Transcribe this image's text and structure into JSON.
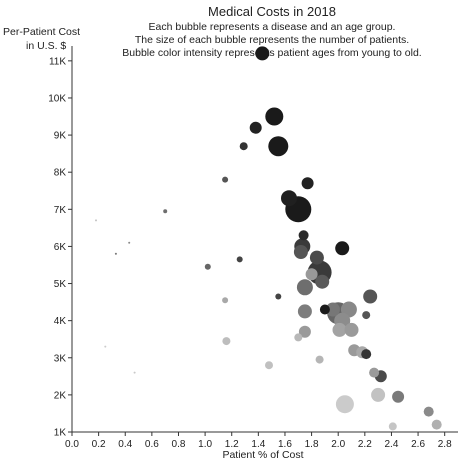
{
  "chart_data": {
    "type": "scatter",
    "title": "Medical Costs in 2018",
    "subtitle": [
      "Each bubble represents a disease and an age group.",
      "The size of each bubble represents the number of patients.",
      "Bubble color intensity represents patient ages from young to old."
    ],
    "xlabel": "Patient % of Cost",
    "ylabel": [
      "Per-Patient Cost",
      "in U.S. $"
    ],
    "xlim": [
      0.0,
      2.9
    ],
    "ylim": [
      1000,
      11400
    ],
    "xticks": [
      "0.0",
      "0.2",
      "0.4",
      "0.6",
      "0.8",
      "1.0",
      "1.2",
      "1.4",
      "1.6",
      "1.8",
      "2.0",
      "2.2",
      "2.4",
      "2.6",
      "2.8"
    ],
    "yticks": [
      "1K",
      "2K",
      "3K",
      "4K",
      "5K",
      "6K",
      "7K",
      "8K",
      "9K",
      "10K",
      "11K"
    ],
    "grid": false,
    "points": [
      {
        "x": 1.43,
        "y": 11200,
        "size": 7,
        "color": "#1a1a1a"
      },
      {
        "x": 1.38,
        "y": 9200,
        "size": 6,
        "color": "#222222"
      },
      {
        "x": 1.52,
        "y": 9500,
        "size": 9,
        "color": "#1a1a1a"
      },
      {
        "x": 1.29,
        "y": 8700,
        "size": 4,
        "color": "#333333"
      },
      {
        "x": 1.55,
        "y": 8700,
        "size": 10,
        "color": "#1a1a1a"
      },
      {
        "x": 1.15,
        "y": 7800,
        "size": 3,
        "color": "#555555"
      },
      {
        "x": 1.77,
        "y": 7700,
        "size": 6,
        "color": "#222222"
      },
      {
        "x": 0.7,
        "y": 6950,
        "size": 2,
        "color": "#6e6e6e"
      },
      {
        "x": 0.18,
        "y": 6700,
        "size": 1,
        "color": "#c2c2c2"
      },
      {
        "x": 1.63,
        "y": 7300,
        "size": 8,
        "color": "#202020"
      },
      {
        "x": 1.7,
        "y": 7000,
        "size": 13,
        "color": "#1a1a1a"
      },
      {
        "x": 1.74,
        "y": 6300,
        "size": 5,
        "color": "#2a2a2a"
      },
      {
        "x": 0.43,
        "y": 6100,
        "size": 1,
        "color": "#8a8a8a"
      },
      {
        "x": 0.33,
        "y": 5800,
        "size": 1,
        "color": "#777777"
      },
      {
        "x": 1.26,
        "y": 5650,
        "size": 3,
        "color": "#444444"
      },
      {
        "x": 1.73,
        "y": 6000,
        "size": 8,
        "color": "#3a3a3a"
      },
      {
        "x": 1.72,
        "y": 5850,
        "size": 7,
        "color": "#555555"
      },
      {
        "x": 1.84,
        "y": 5700,
        "size": 7,
        "color": "#4a4a4a"
      },
      {
        "x": 2.03,
        "y": 5950,
        "size": 7,
        "color": "#1a1a1a"
      },
      {
        "x": 1.02,
        "y": 5450,
        "size": 3,
        "color": "#666666"
      },
      {
        "x": 1.86,
        "y": 5300,
        "size": 12,
        "color": "#3a3a3a"
      },
      {
        "x": 1.8,
        "y": 5250,
        "size": 6,
        "color": "#999999"
      },
      {
        "x": 1.88,
        "y": 5050,
        "size": 7,
        "color": "#5a5a5a"
      },
      {
        "x": 1.75,
        "y": 4900,
        "size": 8,
        "color": "#6e6e6e"
      },
      {
        "x": 1.15,
        "y": 4550,
        "size": 3,
        "color": "#a8a8a8"
      },
      {
        "x": 1.55,
        "y": 4650,
        "size": 3,
        "color": "#444444"
      },
      {
        "x": 2.24,
        "y": 4650,
        "size": 7,
        "color": "#555555"
      },
      {
        "x": 1.9,
        "y": 4300,
        "size": 5,
        "color": "#1a1a1a"
      },
      {
        "x": 2.0,
        "y": 4200,
        "size": 11,
        "color": "#666666"
      },
      {
        "x": 1.96,
        "y": 4300,
        "size": 7,
        "color": "#777777"
      },
      {
        "x": 2.08,
        "y": 4300,
        "size": 8,
        "color": "#888888"
      },
      {
        "x": 2.21,
        "y": 4150,
        "size": 4,
        "color": "#555555"
      },
      {
        "x": 1.75,
        "y": 4250,
        "size": 7,
        "color": "#7d7d7d"
      },
      {
        "x": 2.03,
        "y": 4000,
        "size": 8,
        "color": "#8c8c8c"
      },
      {
        "x": 1.75,
        "y": 3700,
        "size": 6,
        "color": "#9a9a9a"
      },
      {
        "x": 2.01,
        "y": 3750,
        "size": 7,
        "color": "#a3a3a3"
      },
      {
        "x": 2.1,
        "y": 3750,
        "size": 7,
        "color": "#9a9a9a"
      },
      {
        "x": 1.7,
        "y": 3550,
        "size": 4,
        "color": "#b8b8b8"
      },
      {
        "x": 1.16,
        "y": 3450,
        "size": 4,
        "color": "#bdbdbd"
      },
      {
        "x": 0.25,
        "y": 3300,
        "size": 1,
        "color": "#cccccc"
      },
      {
        "x": 2.12,
        "y": 3200,
        "size": 6,
        "color": "#9a9a9a"
      },
      {
        "x": 2.18,
        "y": 3150,
        "size": 6,
        "color": "#a8a8a8"
      },
      {
        "x": 2.21,
        "y": 3100,
        "size": 5,
        "color": "#333333"
      },
      {
        "x": 1.86,
        "y": 2950,
        "size": 4,
        "color": "#b5b5b5"
      },
      {
        "x": 1.48,
        "y": 2800,
        "size": 4,
        "color": "#c0c0c0"
      },
      {
        "x": 0.47,
        "y": 2600,
        "size": 1,
        "color": "#c9c9c9"
      },
      {
        "x": 2.27,
        "y": 2600,
        "size": 5,
        "color": "#9a9a9a"
      },
      {
        "x": 2.32,
        "y": 2500,
        "size": 6,
        "color": "#4a4a4a"
      },
      {
        "x": 2.45,
        "y": 1950,
        "size": 6,
        "color": "#7a7a7a"
      },
      {
        "x": 2.3,
        "y": 2000,
        "size": 7,
        "color": "#c2c2c2"
      },
      {
        "x": 2.05,
        "y": 1750,
        "size": 9,
        "color": "#cbcbcb"
      },
      {
        "x": 2.68,
        "y": 1550,
        "size": 5,
        "color": "#8a8a8a"
      },
      {
        "x": 2.41,
        "y": 1150,
        "size": 4,
        "color": "#c5c5c5"
      },
      {
        "x": 2.74,
        "y": 1200,
        "size": 5,
        "color": "#b0b0b0"
      }
    ]
  }
}
